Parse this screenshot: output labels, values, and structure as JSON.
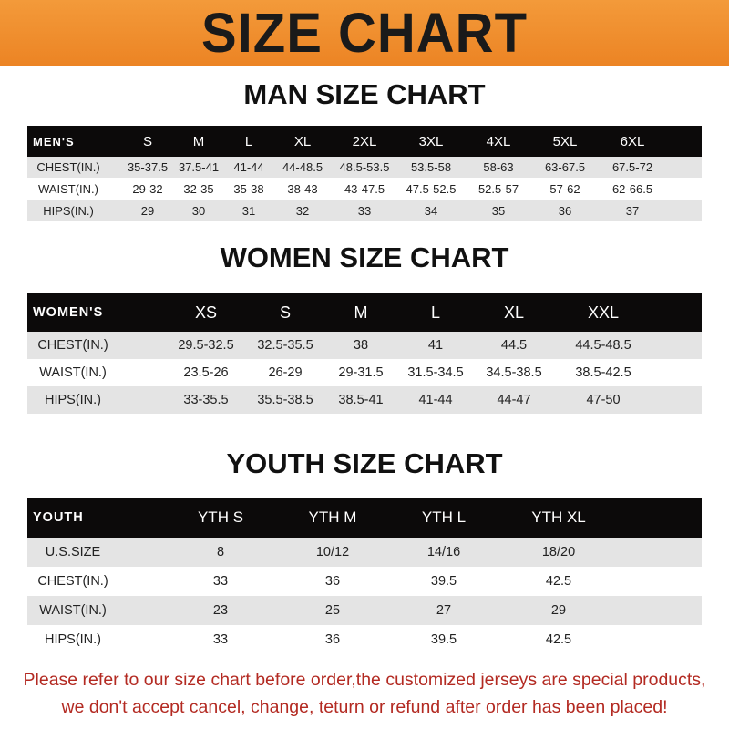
{
  "banner_title": "SIZE CHART",
  "men": {
    "title": "MAN SIZE CHART",
    "header": [
      "MEN'S",
      "S",
      "M",
      "L",
      "XL",
      "2XL",
      "3XL",
      "4XL",
      "5XL",
      "6XL"
    ],
    "rows": [
      [
        "CHEST(IN.)",
        "35-37.5",
        "37.5-41",
        "41-44",
        "44-48.5",
        "48.5-53.5",
        "53.5-58",
        "58-63",
        "63-67.5",
        "67.5-72"
      ],
      [
        "WAIST(IN.)",
        "29-32",
        "32-35",
        "35-38",
        "38-43",
        "43-47.5",
        "47.5-52.5",
        "52.5-57",
        "57-62",
        "62-66.5"
      ],
      [
        "HIPS(IN.)",
        "29",
        "30",
        "31",
        "32",
        "33",
        "34",
        "35",
        "36",
        "37"
      ]
    ]
  },
  "women": {
    "title": "WOMEN SIZE CHART",
    "header": [
      "WOMEN'S",
      "XS",
      "S",
      "M",
      "L",
      "XL",
      "XXL"
    ],
    "rows": [
      [
        "CHEST(IN.)",
        "29.5-32.5",
        "32.5-35.5",
        "38",
        "41",
        "44.5",
        "44.5-48.5"
      ],
      [
        "WAIST(IN.)",
        "23.5-26",
        "26-29",
        "29-31.5",
        "31.5-34.5",
        "34.5-38.5",
        "38.5-42.5"
      ],
      [
        "HIPS(IN.)",
        "33-35.5",
        "35.5-38.5",
        "38.5-41",
        "41-44",
        "44-47",
        "47-50"
      ]
    ]
  },
  "youth": {
    "title": "YOUTH SIZE CHART",
    "header": [
      "YOUTH",
      "YTH S",
      "YTH M",
      "YTH L",
      "YTH XL"
    ],
    "rows": [
      [
        "U.S.SIZE",
        "8",
        "10/12",
        "14/16",
        "18/20"
      ],
      [
        "CHEST(IN.)",
        "33",
        "36",
        "39.5",
        "42.5"
      ],
      [
        "WAIST(IN.)",
        "23",
        "25",
        "27",
        "29"
      ],
      [
        "HIPS(IN.)",
        "33",
        "36",
        "39.5",
        "42.5"
      ]
    ]
  },
  "notice": {
    "line1": "Please refer to our size chart before order,the customized jerseys are special products,",
    "line2": "we don't accept cancel, change, teturn or refund after order has been placed!"
  },
  "colors": {
    "banner": "#ec8424",
    "header_row": "#0c0a0a",
    "stripe": "#e4e4e4",
    "notice": "#b32a22"
  }
}
